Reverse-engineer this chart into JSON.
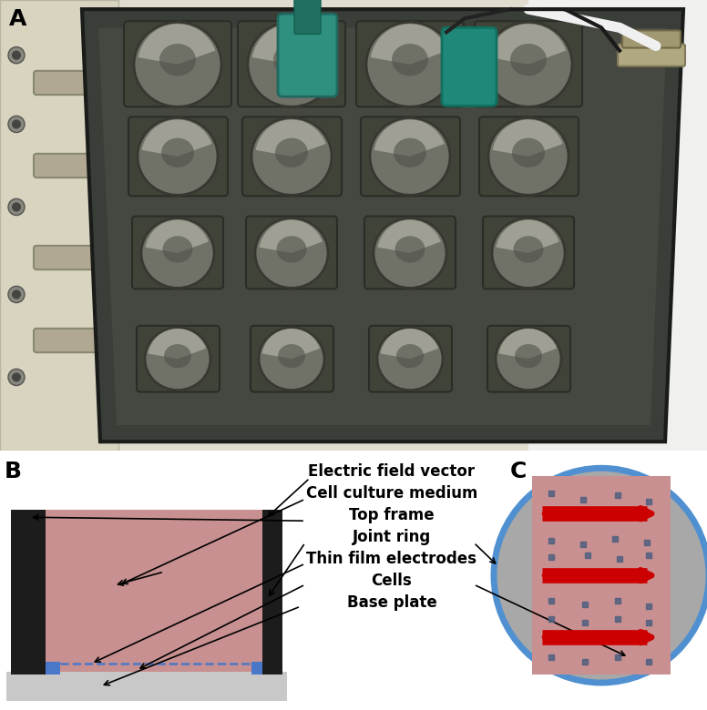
{
  "panel_A_label": "A",
  "panel_B_label": "B",
  "panel_C_label": "C",
  "labels": [
    "Electric field vector",
    "Cell culture medium",
    "Top frame",
    "Joint ring",
    "Thin film electrodes",
    "Cells",
    "Base plate"
  ],
  "bg_color": "#ffffff",
  "photo_bg": "#d8d4c8",
  "photo_bg2": "#e8e4d8",
  "tray_color": "#3a3e38",
  "tray_edge": "#1a1c1a",
  "well_color": "#3c403a",
  "dish_color": "#808070",
  "dish_shine": "#c8c8b8",
  "diagram_B": {
    "pink_color": "#c89090",
    "left_bar_color": "#1c1c1c",
    "right_bar_color": "#1c1c1c",
    "base_color": "#c8c8c8",
    "electrode_color": "#4a78c8",
    "dashed_color": "#4a78c8"
  },
  "diagram_C": {
    "circle_edge_color": "#5090d0",
    "circle_face_color": "#a8a8a8",
    "inner_rect_color": "#c89090",
    "arrow_color": "#cc0000",
    "dot_color": "#506080",
    "circle_linewidth": 5
  },
  "label_fontsize": 12,
  "panel_label_fontsize": 18,
  "arrow_lw": 1.2
}
